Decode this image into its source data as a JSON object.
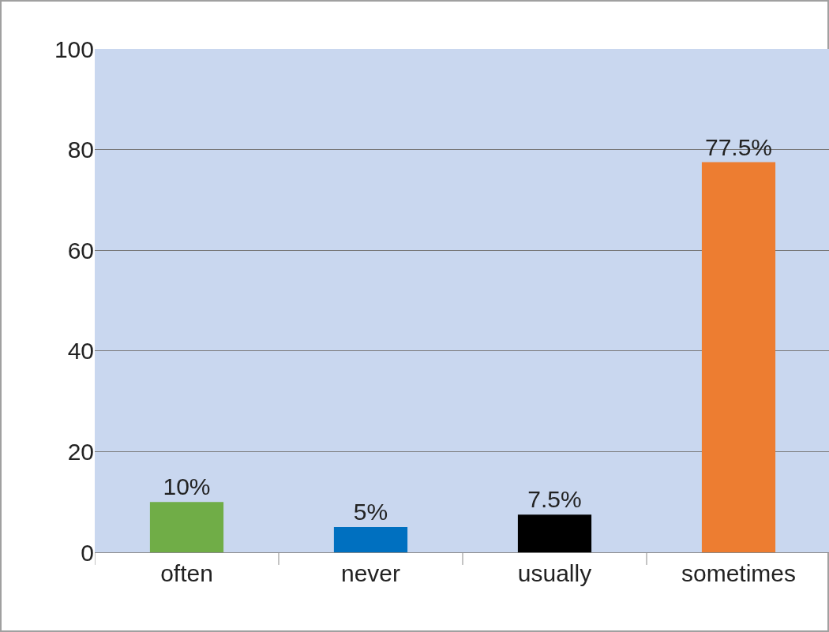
{
  "chart_data": {
    "type": "bar",
    "categories": [
      "often",
      "never",
      "usually",
      "sometimes"
    ],
    "values": [
      10,
      5,
      7.5,
      77.5
    ],
    "colors": [
      "#70ad47",
      "#0070c0",
      "#000000",
      "#ed7d31"
    ],
    "value_labels": [
      "10%",
      "5%",
      "7.5%",
      "77.5%"
    ],
    "ylim": [
      0,
      100
    ],
    "yticks": [
      0,
      20,
      40,
      60,
      80,
      100
    ],
    "grid": "y"
  }
}
